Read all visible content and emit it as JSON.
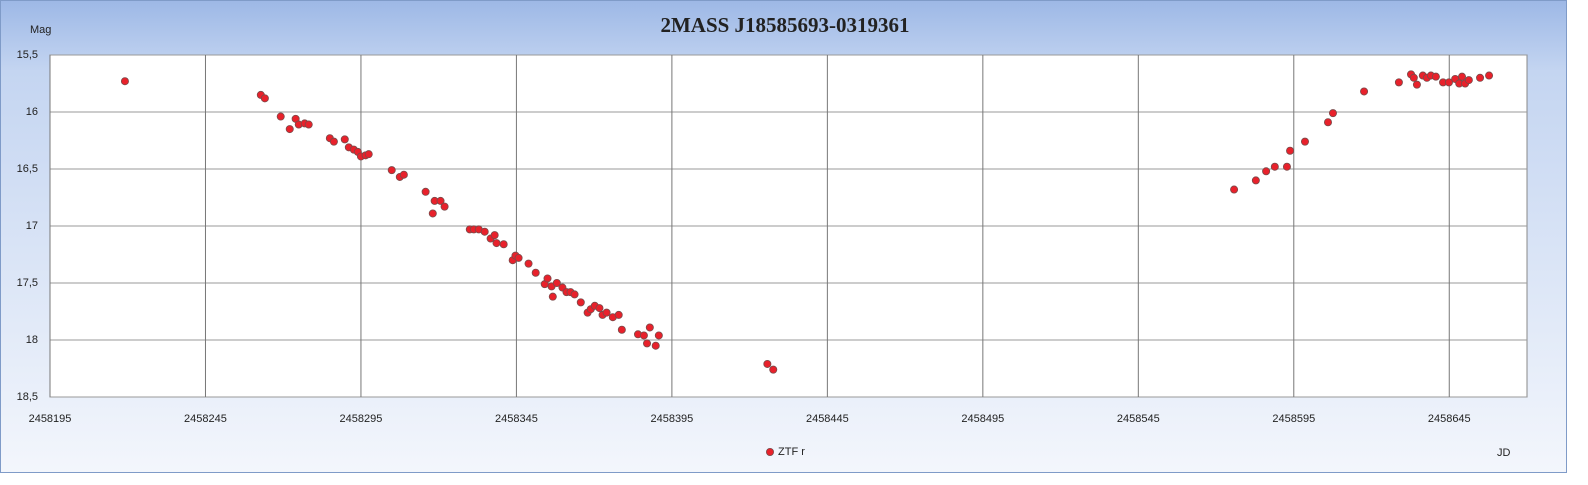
{
  "chart_data": {
    "type": "scatter",
    "title": "2MASS J18585693-0319361",
    "xlabel": "JD",
    "ylabel": "Mag",
    "x": [
      2458219.1,
      2458262.8,
      2458264.1,
      2458269.2,
      2458272.1,
      2458274.0,
      2458275.0,
      2458276.9,
      2458278.2,
      2458285.0,
      2458286.3,
      2458289.8,
      2458291.1,
      2458292.7,
      2458294.0,
      2458295.0,
      2458296.5,
      2458297.5,
      2458304.9,
      2458307.5,
      2458308.8,
      2458315.8,
      2458318.1,
      2458318.7,
      2458320.6,
      2458321.9,
      2458330.0,
      2458331.3,
      2458332.9,
      2458334.8,
      2458336.7,
      2458338.0,
      2458338.6,
      2458340.9,
      2458343.8,
      2458344.7,
      2458345.7,
      2458348.9,
      2458351.2,
      2458354.1,
      2458355.0,
      2458356.3,
      2458356.7,
      2458358.0,
      2458359.8,
      2458361.1,
      2458362.4,
      2458363.7,
      2458365.7,
      2458367.9,
      2458368.9,
      2458370.2,
      2458371.7,
      2458372.7,
      2458374.0,
      2458376.0,
      2458377.9,
      2458378.9,
      2458384.1,
      2458386.0,
      2458387.0,
      2458387.9,
      2458389.8,
      2458390.8,
      2458425.7,
      2458427.6,
      2458575.8,
      2458582.8,
      2458586.1,
      2458588.9,
      2458592.8,
      2458593.8,
      2458598.6,
      2458606.0,
      2458607.6,
      2458617.6,
      2458628.8,
      2458632.7,
      2458633.6,
      2458634.6,
      2458636.5,
      2458637.8,
      2458639.1,
      2458640.7,
      2458643.0,
      2458644.9,
      2458646.9,
      2458648.2,
      2458649.1,
      2458650.1,
      2458651.3,
      2458654.9,
      2458657.8
    ],
    "series": [
      {
        "name": "ZTF r",
        "color": "#e8212b",
        "values": [
          15.73,
          15.85,
          15.88,
          16.04,
          16.15,
          16.06,
          16.11,
          16.1,
          16.11,
          16.23,
          16.26,
          16.24,
          16.31,
          16.33,
          16.35,
          16.39,
          16.38,
          16.37,
          16.51,
          16.57,
          16.55,
          16.7,
          16.89,
          16.78,
          16.78,
          16.83,
          17.03,
          17.03,
          17.03,
          17.05,
          17.11,
          17.08,
          17.15,
          17.16,
          17.3,
          17.26,
          17.28,
          17.33,
          17.41,
          17.51,
          17.46,
          17.53,
          17.62,
          17.5,
          17.54,
          17.58,
          17.58,
          17.6,
          17.67,
          17.76,
          17.73,
          17.7,
          17.72,
          17.78,
          17.76,
          17.8,
          17.78,
          17.91,
          17.95,
          17.96,
          18.03,
          17.89,
          18.05,
          17.96,
          18.21,
          18.26,
          16.68,
          16.6,
          16.52,
          16.48,
          16.48,
          16.34,
          16.26,
          16.09,
          16.01,
          15.82,
          15.74,
          15.67,
          15.7,
          15.76,
          15.68,
          15.7,
          15.68,
          15.69,
          15.74,
          15.74,
          15.71,
          15.75,
          15.69,
          15.75,
          15.72,
          15.7,
          15.68
        ]
      }
    ],
    "xlim": [
      2458195,
      2458670
    ],
    "xticks": [
      2458195,
      2458245,
      2458295,
      2458345,
      2458395,
      2458445,
      2458495,
      2458545,
      2458595,
      2458645
    ],
    "ylim": [
      18.5,
      15.5
    ],
    "yticks": [
      {
        "value": 15.5,
        "label": "15,5"
      },
      16,
      {
        "value": 16.5,
        "label": "16,5"
      },
      17,
      {
        "value": 17.5,
        "label": "17,5"
      },
      18,
      {
        "value": 18.5,
        "label": "18,5"
      }
    ],
    "grid": true,
    "legend": "bottom"
  }
}
